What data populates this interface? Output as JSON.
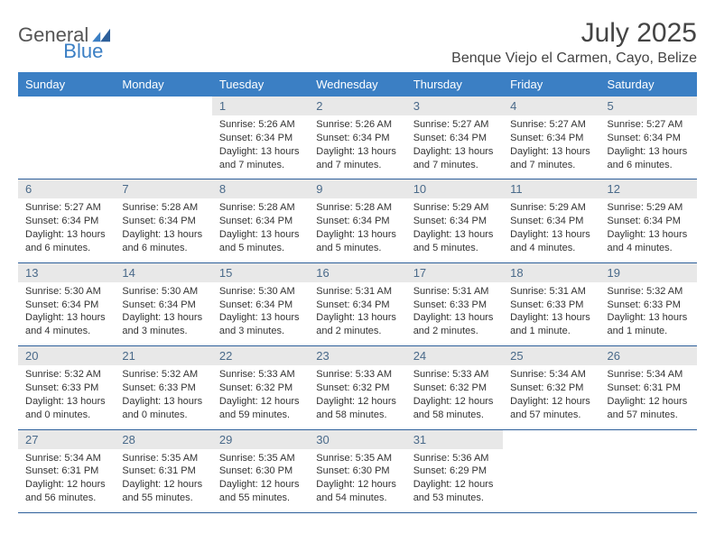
{
  "logo": {
    "text1": "General",
    "text2": "Blue"
  },
  "title": "July 2025",
  "location": "Benque Viejo el Carmen, Cayo, Belize",
  "colors": {
    "header_bg": "#3b7fc4",
    "header_text": "#ffffff",
    "daynum_bg": "#e8e8e8",
    "daynum_text": "#4a6a8a",
    "row_border": "#2d5f9a",
    "body_text": "#333333"
  },
  "weekdays": [
    "Sunday",
    "Monday",
    "Tuesday",
    "Wednesday",
    "Thursday",
    "Friday",
    "Saturday"
  ],
  "weeks": [
    [
      {
        "empty": true
      },
      {
        "empty": true
      },
      {
        "n": "1",
        "sr": "5:26 AM",
        "ss": "6:34 PM",
        "dl": "13 hours and 7 minutes."
      },
      {
        "n": "2",
        "sr": "5:26 AM",
        "ss": "6:34 PM",
        "dl": "13 hours and 7 minutes."
      },
      {
        "n": "3",
        "sr": "5:27 AM",
        "ss": "6:34 PM",
        "dl": "13 hours and 7 minutes."
      },
      {
        "n": "4",
        "sr": "5:27 AM",
        "ss": "6:34 PM",
        "dl": "13 hours and 7 minutes."
      },
      {
        "n": "5",
        "sr": "5:27 AM",
        "ss": "6:34 PM",
        "dl": "13 hours and 6 minutes."
      }
    ],
    [
      {
        "n": "6",
        "sr": "5:27 AM",
        "ss": "6:34 PM",
        "dl": "13 hours and 6 minutes."
      },
      {
        "n": "7",
        "sr": "5:28 AM",
        "ss": "6:34 PM",
        "dl": "13 hours and 6 minutes."
      },
      {
        "n": "8",
        "sr": "5:28 AM",
        "ss": "6:34 PM",
        "dl": "13 hours and 5 minutes."
      },
      {
        "n": "9",
        "sr": "5:28 AM",
        "ss": "6:34 PM",
        "dl": "13 hours and 5 minutes."
      },
      {
        "n": "10",
        "sr": "5:29 AM",
        "ss": "6:34 PM",
        "dl": "13 hours and 5 minutes."
      },
      {
        "n": "11",
        "sr": "5:29 AM",
        "ss": "6:34 PM",
        "dl": "13 hours and 4 minutes."
      },
      {
        "n": "12",
        "sr": "5:29 AM",
        "ss": "6:34 PM",
        "dl": "13 hours and 4 minutes."
      }
    ],
    [
      {
        "n": "13",
        "sr": "5:30 AM",
        "ss": "6:34 PM",
        "dl": "13 hours and 4 minutes."
      },
      {
        "n": "14",
        "sr": "5:30 AM",
        "ss": "6:34 PM",
        "dl": "13 hours and 3 minutes."
      },
      {
        "n": "15",
        "sr": "5:30 AM",
        "ss": "6:34 PM",
        "dl": "13 hours and 3 minutes."
      },
      {
        "n": "16",
        "sr": "5:31 AM",
        "ss": "6:34 PM",
        "dl": "13 hours and 2 minutes."
      },
      {
        "n": "17",
        "sr": "5:31 AM",
        "ss": "6:33 PM",
        "dl": "13 hours and 2 minutes."
      },
      {
        "n": "18",
        "sr": "5:31 AM",
        "ss": "6:33 PM",
        "dl": "13 hours and 1 minute."
      },
      {
        "n": "19",
        "sr": "5:32 AM",
        "ss": "6:33 PM",
        "dl": "13 hours and 1 minute."
      }
    ],
    [
      {
        "n": "20",
        "sr": "5:32 AM",
        "ss": "6:33 PM",
        "dl": "13 hours and 0 minutes."
      },
      {
        "n": "21",
        "sr": "5:32 AM",
        "ss": "6:33 PM",
        "dl": "13 hours and 0 minutes."
      },
      {
        "n": "22",
        "sr": "5:33 AM",
        "ss": "6:32 PM",
        "dl": "12 hours and 59 minutes."
      },
      {
        "n": "23",
        "sr": "5:33 AM",
        "ss": "6:32 PM",
        "dl": "12 hours and 58 minutes."
      },
      {
        "n": "24",
        "sr": "5:33 AM",
        "ss": "6:32 PM",
        "dl": "12 hours and 58 minutes."
      },
      {
        "n": "25",
        "sr": "5:34 AM",
        "ss": "6:32 PM",
        "dl": "12 hours and 57 minutes."
      },
      {
        "n": "26",
        "sr": "5:34 AM",
        "ss": "6:31 PM",
        "dl": "12 hours and 57 minutes."
      }
    ],
    [
      {
        "n": "27",
        "sr": "5:34 AM",
        "ss": "6:31 PM",
        "dl": "12 hours and 56 minutes."
      },
      {
        "n": "28",
        "sr": "5:35 AM",
        "ss": "6:31 PM",
        "dl": "12 hours and 55 minutes."
      },
      {
        "n": "29",
        "sr": "5:35 AM",
        "ss": "6:30 PM",
        "dl": "12 hours and 55 minutes."
      },
      {
        "n": "30",
        "sr": "5:35 AM",
        "ss": "6:30 PM",
        "dl": "12 hours and 54 minutes."
      },
      {
        "n": "31",
        "sr": "5:36 AM",
        "ss": "6:29 PM",
        "dl": "12 hours and 53 minutes."
      },
      {
        "empty": true
      },
      {
        "empty": true
      }
    ]
  ],
  "labels": {
    "sunrise": "Sunrise: ",
    "sunset": "Sunset: ",
    "daylight": "Daylight: "
  }
}
